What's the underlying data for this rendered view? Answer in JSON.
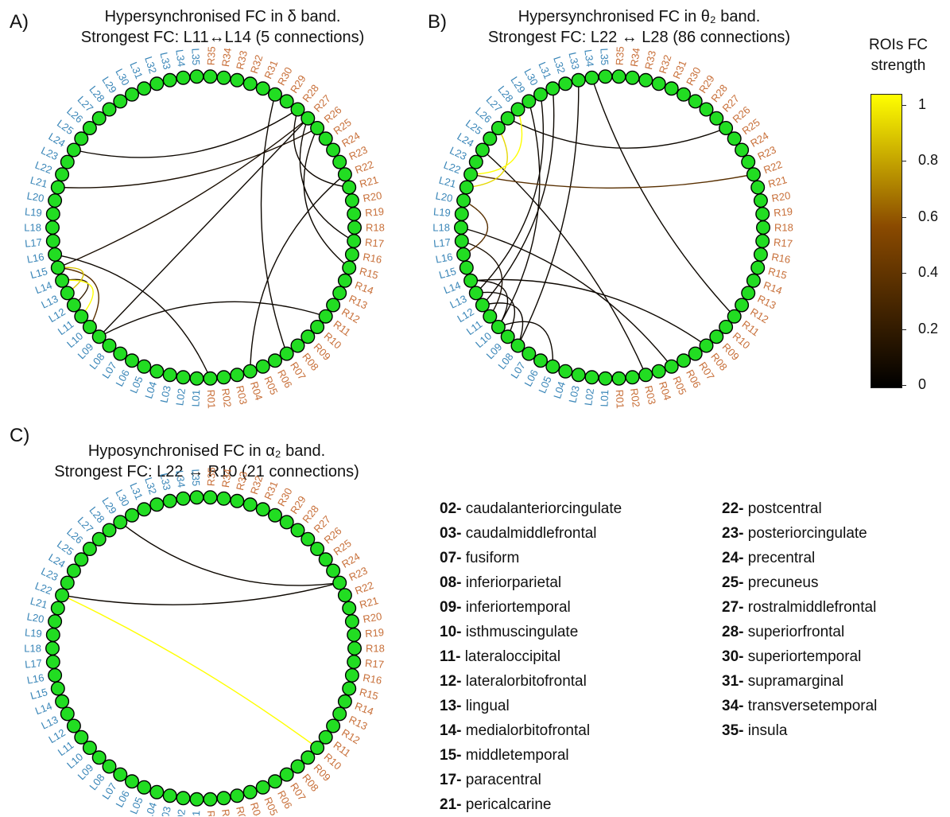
{
  "panels": [
    {
      "letter": "A)",
      "title_line1": "Hypersynchronised FC in δ band.",
      "title_line2": "Strongest FC: L11↔L14 (5 connections)"
    },
    {
      "letter": "B)",
      "title_line1": "Hypersynchronised FC in θ₂ band.",
      "title_line2": "Strongest FC: L22 ↔ L28 (86 connections)"
    },
    {
      "letter": "C)",
      "title_line1": "Hyposynchronised FC in α₂ band.",
      "title_line2": "Strongest FC: L22 ↔ R10 (21 connections)"
    }
  ],
  "colorbar": {
    "title_line1": "ROIs FC",
    "title_line2": "strength",
    "ticks": [
      "1",
      "0.8",
      "0.6",
      "0.4",
      "0.2",
      "0"
    ],
    "color_low": "#000000",
    "color_mid": "#8a4a00",
    "color_high": "#ffff00"
  },
  "colors": {
    "node_fill": "#22dd22",
    "left_label": "#3a86b8",
    "right_label": "#c8703a"
  },
  "legend_left": [
    {
      "num": "02-",
      "name": "caudalanteriorcingulate"
    },
    {
      "num": "03-",
      "name": "caudalmiddlefrontal"
    },
    {
      "num": "07-",
      "name": "fusiform"
    },
    {
      "num": "08-",
      "name": "inferiorparietal"
    },
    {
      "num": "09-",
      "name": "inferiortemporal"
    },
    {
      "num": "10-",
      "name": "isthmuscingulate"
    },
    {
      "num": "11-",
      "name": "lateraloccipital"
    },
    {
      "num": "12-",
      "name": "lateralorbitofrontal"
    },
    {
      "num": "13-",
      "name": "lingual"
    },
    {
      "num": "14-",
      "name": "medialorbitofrontal"
    },
    {
      "num": "15-",
      "name": "middletemporal"
    },
    {
      "num": "17-",
      "name": "paracentral"
    },
    {
      "num": "21-",
      "name": "pericalcarine"
    }
  ],
  "legend_right": [
    {
      "num": "22-",
      "name": "postcentral"
    },
    {
      "num": "23-",
      "name": "posteriorcingulate"
    },
    {
      "num": "24-",
      "name": "precentral"
    },
    {
      "num": "25-",
      "name": "precuneus"
    },
    {
      "num": "27-",
      "name": "rostralmiddlefrontal"
    },
    {
      "num": "28-",
      "name": "superiorfrontal"
    },
    {
      "num": "30-",
      "name": "superiortemporal"
    },
    {
      "num": "31-",
      "name": "supramarginal"
    },
    {
      "num": "34-",
      "name": "transversetemporal"
    },
    {
      "num": "35-",
      "name": "insula"
    }
  ],
  "node_labels_left": [
    "L01",
    "L02",
    "L03",
    "L04",
    "L05",
    "L06",
    "L07",
    "L08",
    "L09",
    "L10",
    "L11",
    "L12",
    "L13",
    "L14",
    "L15",
    "L16",
    "L17",
    "L18",
    "L19",
    "L20",
    "L21",
    "L22",
    "L23",
    "L24",
    "L25",
    "L26",
    "L27",
    "L28",
    "L29",
    "L30",
    "L31",
    "L32",
    "L33",
    "L34",
    "L35"
  ],
  "node_labels_right": [
    "R01",
    "R02",
    "R03",
    "R04",
    "R05",
    "R06",
    "R07",
    "R08",
    "R09",
    "R10",
    "R11",
    "R12",
    "R13",
    "R14",
    "R15",
    "R16",
    "R17",
    "R18",
    "R19",
    "R20",
    "R21",
    "R22",
    "R23",
    "R24",
    "R25",
    "R26",
    "R27",
    "R28",
    "R29",
    "R30",
    "R31",
    "R32",
    "R33",
    "R34",
    "R35"
  ],
  "connections": [
    [
      {
        "a": "L11",
        "b": "L14",
        "strength": 1.0
      },
      {
        "a": "L13",
        "b": "L15",
        "strength": 0.85
      },
      {
        "a": "L10",
        "b": "L15",
        "strength": 0.35
      },
      {
        "a": "L12",
        "b": "L14",
        "strength": 0.2
      },
      {
        "a": "L09",
        "b": "R27",
        "strength": 0.05
      },
      {
        "a": "L15",
        "b": "R27",
        "strength": 0.1
      },
      {
        "a": "L21",
        "b": "R26",
        "strength": 0.1
      },
      {
        "a": "L24",
        "b": "R28",
        "strength": 0.05
      },
      {
        "a": "L09",
        "b": "R11",
        "strength": 0.05
      },
      {
        "a": "R28",
        "b": "R21",
        "strength": 0.05
      },
      {
        "a": "R27",
        "b": "R17",
        "strength": 0.05
      },
      {
        "a": "R26",
        "b": "R15",
        "strength": 0.05
      },
      {
        "a": "R30",
        "b": "R07",
        "strength": 0.05
      },
      {
        "a": "R22",
        "b": "R04",
        "strength": 0.05
      },
      {
        "a": "L16",
        "b": "R01",
        "strength": 0.05
      }
    ],
    [
      {
        "a": "L22",
        "b": "L28",
        "strength": 1.0
      },
      {
        "a": "L21",
        "b": "L26",
        "strength": 0.9
      },
      {
        "a": "L16",
        "b": "L20",
        "strength": 0.35
      },
      {
        "a": "L09",
        "b": "L13",
        "strength": 0.05
      },
      {
        "a": "L10",
        "b": "L14",
        "strength": 0.05
      },
      {
        "a": "L08",
        "b": "L12",
        "strength": 0.05
      },
      {
        "a": "L05",
        "b": "L10",
        "strength": 0.05
      },
      {
        "a": "L11",
        "b": "L17",
        "strength": 0.1
      },
      {
        "a": "L10",
        "b": "L29",
        "strength": 0.05
      },
      {
        "a": "L13",
        "b": "L30",
        "strength": 0.05
      },
      {
        "a": "L27",
        "b": "R26",
        "strength": 0.05
      },
      {
        "a": "L22",
        "b": "R22",
        "strength": 0.35
      },
      {
        "a": "L18",
        "b": "R05",
        "strength": 0.05
      },
      {
        "a": "L14",
        "b": "R08",
        "strength": 0.05
      },
      {
        "a": "L34",
        "b": "R11",
        "strength": 0.05
      },
      {
        "a": "L24",
        "b": "R03",
        "strength": 0.05
      },
      {
        "a": "L33",
        "b": "L08",
        "strength": 0.05
      },
      {
        "a": "L31",
        "b": "L12",
        "strength": 0.05
      }
    ],
    [
      {
        "a": "L22",
        "b": "R10",
        "strength": 1.0
      },
      {
        "a": "L22",
        "b": "R23",
        "strength": 0.05
      },
      {
        "a": "L29",
        "b": "R23",
        "strength": 0.05
      }
    ]
  ]
}
